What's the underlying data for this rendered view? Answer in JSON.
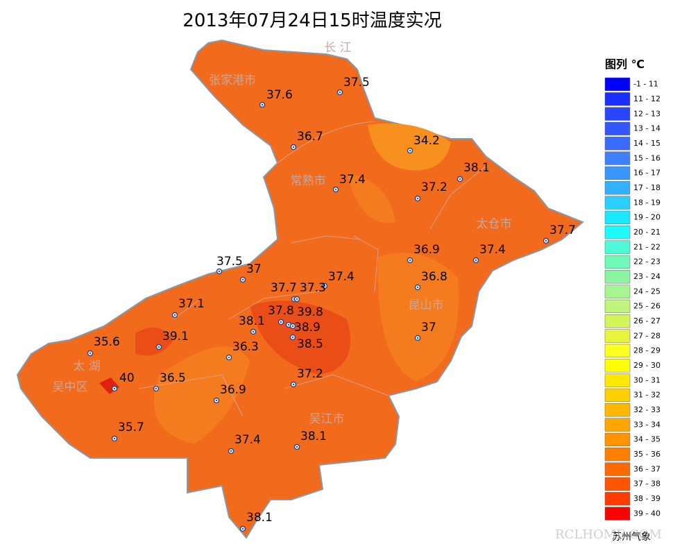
{
  "title": "2013年07月24日15时温度实况",
  "place_names": [
    "长 江",
    "张家港市",
    "常熟市",
    "太仓市",
    "昆山市",
    "太 湖",
    "吴中区",
    "吴江市"
  ],
  "stations": {
    "values": [
      37.5,
      37.6,
      36.7,
      34.2,
      38.1,
      37.4,
      37.2,
      37.7,
      36.9,
      37.4,
      37.5,
      37,
      37.4,
      37.7,
      37.3,
      36.8,
      37.1,
      37.8,
      39.8,
      38.1,
      38.9,
      39.1,
      35.6,
      38.5,
      36.3,
      37,
      37.2,
      40,
      36.5,
      36.9,
      35.7,
      37.4,
      38.1,
      38.1
    ]
  },
  "legend": {
    "title": "图列 ℃",
    "labels": [
      "-1 - 11",
      "11 - 12",
      "12 - 13",
      "13 - 14",
      "14 - 15",
      "15 - 16",
      "16 - 17",
      "17 - 18",
      "18 - 19",
      "19 - 20",
      "20 - 21",
      "21 - 22",
      "22 - 23",
      "23 - 24",
      "24 - 25",
      "25 - 26",
      "26 - 27",
      "27 - 28",
      "28 - 29",
      "29 - 30",
      "30 - 31",
      "31 - 32",
      "32 - 33",
      "33 - 34",
      "34 - 35",
      "35 - 36",
      "36 - 37",
      "37 - 38",
      "38 - 39",
      "39 - 40"
    ],
    "colors": [
      "#0000ff",
      "#1a2eff",
      "#2846ff",
      "#3357ff",
      "#3a6bff",
      "#3f80ff",
      "#3a96ff",
      "#33b0ff",
      "#28cfff",
      "#1ae8ff",
      "#1efaff",
      "#4cfad8",
      "#70fab8",
      "#8af5a0",
      "#a6f590",
      "#bef57a",
      "#d2f55a",
      "#e6f53c",
      "#ffff22",
      "#ffff00",
      "#ffe800",
      "#ffd000",
      "#ffb800",
      "#ffa500",
      "#ff9400",
      "#ff8000",
      "#ff6a00",
      "#ff5400",
      "#ff3c00",
      "#ff0000"
    ]
  },
  "footer": "苏州气象",
  "watermark": "RCLHOME.COM"
}
